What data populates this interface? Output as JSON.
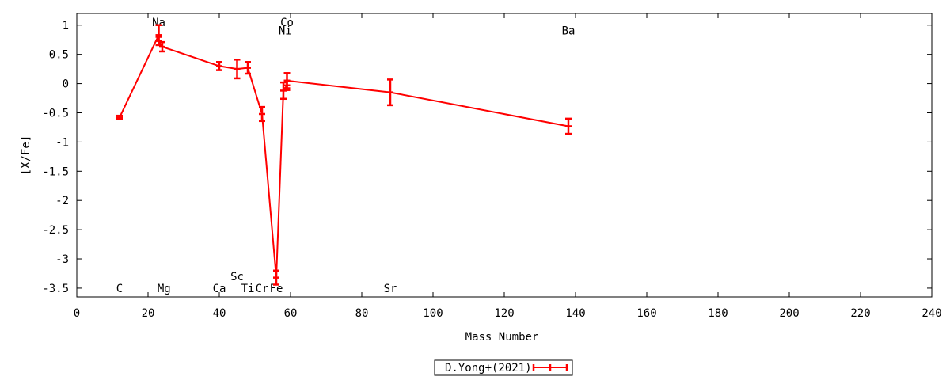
{
  "chart_data": {
    "type": "line",
    "title": "",
    "xlabel": "Mass Number",
    "ylabel": "[X/Fe]",
    "xlim": [
      0,
      240
    ],
    "ylim": [
      -3.65,
      1.2
    ],
    "x_ticks": [
      0,
      20,
      40,
      60,
      80,
      100,
      120,
      140,
      160,
      180,
      200,
      220,
      240
    ],
    "y_ticks": [
      1,
      0.5,
      0,
      -0.5,
      -1,
      -1.5,
      -2,
      -2.5,
      -3,
      -3.5
    ],
    "y_tick_labels": [
      "1",
      "0.5",
      "0",
      "-0.5",
      "-1",
      "-1.5",
      "-2",
      "-2.5",
      "-3",
      "-3.5"
    ],
    "x_tick_labels": [
      "0",
      "20",
      "40",
      "60",
      "80",
      "100",
      "120",
      "140",
      "160",
      "180",
      "200",
      "220",
      "240"
    ],
    "grid": false,
    "legend_position": "bottom-center",
    "series": [
      {
        "name": "D.Yong+(2021)",
        "color": "#ff0000",
        "points": [
          {
            "x": 12,
            "y": -0.58,
            "err": 0.03
          },
          {
            "x": 23,
            "y": 0.83,
            "err": 0.17
          },
          {
            "x": 23,
            "y": 0.73,
            "err": 0.07
          },
          {
            "x": 24,
            "y": 0.63,
            "err": 0.08
          },
          {
            "x": 40,
            "y": 0.3,
            "err": 0.07
          },
          {
            "x": 45,
            "y": 0.25,
            "err": 0.16
          },
          {
            "x": 48,
            "y": 0.27,
            "err": 0.1
          },
          {
            "x": 52,
            "y": -0.52,
            "err": 0.12
          },
          {
            "x": 56,
            "y": -3.32,
            "err": 0.12
          },
          {
            "x": 58,
            "y": -0.12,
            "err": 0.14
          },
          {
            "x": 59,
            "y": -0.03,
            "err": 0.08
          },
          {
            "x": 59,
            "y": 0.05,
            "err": 0.13
          },
          {
            "x": 88,
            "y": -0.15,
            "err": 0.22
          },
          {
            "x": 138,
            "y": -0.73,
            "err": 0.13
          }
        ]
      }
    ],
    "element_labels": [
      {
        "text": "C",
        "x": 12,
        "y": -3.5
      },
      {
        "text": "Na",
        "x": 23,
        "y": 1.05
      },
      {
        "text": "Mg",
        "x": 24.5,
        "y": -3.5
      },
      {
        "text": "Ca",
        "x": 40,
        "y": -3.5
      },
      {
        "text": "Sc",
        "x": 45,
        "y": -3.3
      },
      {
        "text": "Ti",
        "x": 48,
        "y": -3.5
      },
      {
        "text": "Cr",
        "x": 52,
        "y": -3.5
      },
      {
        "text": "Fe",
        "x": 56,
        "y": -3.5
      },
      {
        "text": "Co",
        "x": 59,
        "y": 1.05
      },
      {
        "text": "Ni",
        "x": 58.5,
        "y": 0.91
      },
      {
        "text": "Sr",
        "x": 88,
        "y": -3.5
      },
      {
        "text": "Ba",
        "x": 138,
        "y": 0.91
      }
    ]
  }
}
